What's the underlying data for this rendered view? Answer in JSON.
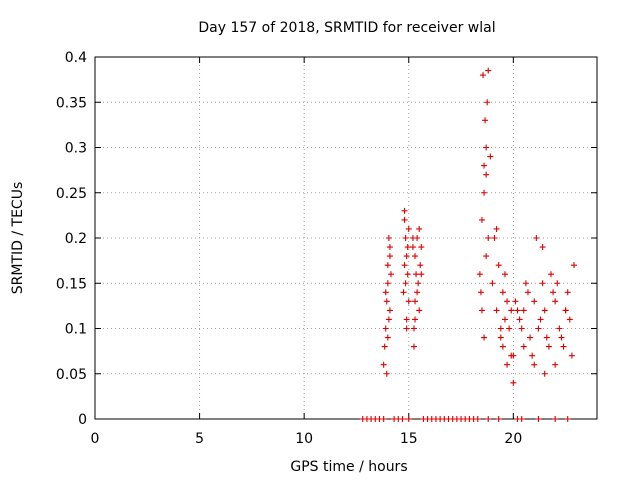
{
  "chart_data": {
    "type": "scatter",
    "title": "Day 157 of 2018, SRMTID for receiver wlal",
    "xlabel": "GPS time / hours",
    "ylabel": "SRMTID / TECUs",
    "xlim": [
      0,
      24
    ],
    "ylim": [
      0,
      0.4
    ],
    "x_ticks": [
      0,
      5,
      10,
      15,
      20
    ],
    "x_tick_labels": [
      "0",
      "5",
      "10",
      "15",
      "20"
    ],
    "y_ticks": [
      0,
      0.05,
      0.1,
      0.15,
      0.2,
      0.25,
      0.3,
      0.35,
      0.4
    ],
    "y_tick_labels": [
      "0",
      "0.05",
      "0.1",
      "0.15",
      "0.2",
      "0.25",
      "0.3",
      "0.35",
      "0.4"
    ],
    "grid": true,
    "marker": "plus",
    "marker_color": "#e00000",
    "series": [
      {
        "name": "SRMTID",
        "x": [
          13.8,
          13.85,
          13.9,
          13.95,
          14.0,
          14.0,
          14.05,
          14.1,
          14.1,
          14.15,
          13.9,
          14.0,
          14.05,
          13.95,
          14.1,
          14.8,
          14.85,
          14.9,
          14.95,
          15.0,
          14.8,
          14.85,
          14.9,
          14.95,
          15.0,
          14.75,
          14.8,
          14.9,
          15.2,
          15.3,
          15.35,
          15.4,
          15.5,
          15.55,
          15.6,
          15.25,
          15.3,
          15.45,
          15.5,
          15.2,
          15.3,
          15.4,
          15.6,
          15.25,
          18.4,
          18.5,
          18.6,
          18.7,
          18.75,
          18.8,
          18.55,
          18.65,
          18.7,
          18.6,
          18.8,
          18.5,
          18.45,
          18.7,
          18.9,
          18.6,
          19.0,
          19.2,
          19.4,
          19.5,
          19.6,
          19.7,
          19.8,
          19.9,
          19.1,
          19.3,
          19.5,
          19.7,
          19.9,
          19.2,
          19.4,
          19.6,
          20.0,
          20.2,
          20.4,
          20.5,
          20.7,
          20.9,
          20.1,
          20.3,
          20.6,
          20.8,
          20.0,
          20.5,
          21.0,
          21.2,
          21.4,
          21.5,
          21.7,
          21.9,
          21.1,
          21.3,
          21.6,
          21.8,
          21.0,
          21.5,
          21.4,
          22.0,
          22.2,
          22.4,
          22.5,
          22.7,
          22.8,
          22.1,
          22.3,
          22.6,
          22.9,
          22.0,
          22.5,
          12.8,
          13.0,
          13.2,
          13.4,
          13.6,
          13.8,
          14.3,
          14.5,
          14.7,
          15.0,
          15.7,
          15.9,
          16.1,
          16.3,
          16.5,
          16.7,
          16.9,
          17.1,
          17.3,
          17.5,
          17.7,
          17.9,
          18.1,
          18.3,
          18.8,
          19.3,
          20.2,
          20.4,
          21.2,
          22.0,
          22.6
        ],
        "y": [
          0.06,
          0.08,
          0.1,
          0.13,
          0.15,
          0.17,
          0.2,
          0.18,
          0.12,
          0.16,
          0.14,
          0.09,
          0.11,
          0.05,
          0.19,
          0.22,
          0.2,
          0.18,
          0.16,
          0.13,
          0.17,
          0.15,
          0.11,
          0.19,
          0.21,
          0.14,
          0.23,
          0.1,
          0.2,
          0.18,
          0.16,
          0.14,
          0.12,
          0.17,
          0.19,
          0.08,
          0.11,
          0.15,
          0.21,
          0.19,
          0.13,
          0.2,
          0.16,
          0.1,
          0.16,
          0.22,
          0.28,
          0.3,
          0.35,
          0.385,
          0.38,
          0.33,
          0.27,
          0.25,
          0.2,
          0.12,
          0.14,
          0.18,
          0.29,
          0.09,
          0.15,
          0.12,
          0.09,
          0.08,
          0.11,
          0.13,
          0.1,
          0.07,
          0.2,
          0.17,
          0.14,
          0.06,
          0.12,
          0.21,
          0.1,
          0.16,
          0.04,
          0.12,
          0.1,
          0.08,
          0.14,
          0.07,
          0.13,
          0.11,
          0.15,
          0.09,
          0.07,
          0.12,
          0.13,
          0.1,
          0.15,
          0.12,
          0.08,
          0.14,
          0.2,
          0.11,
          0.09,
          0.16,
          0.06,
          0.05,
          0.19,
          0.13,
          0.1,
          0.08,
          0.12,
          0.11,
          0.07,
          0.15,
          0.09,
          0.14,
          0.17,
          0.06,
          0.12,
          0,
          0,
          0,
          0,
          0,
          0,
          0,
          0,
          0,
          0,
          0,
          0,
          0,
          0,
          0,
          0,
          0,
          0,
          0,
          0,
          0,
          0,
          0,
          0,
          0,
          0,
          0,
          0,
          0,
          0,
          0
        ]
      }
    ]
  }
}
